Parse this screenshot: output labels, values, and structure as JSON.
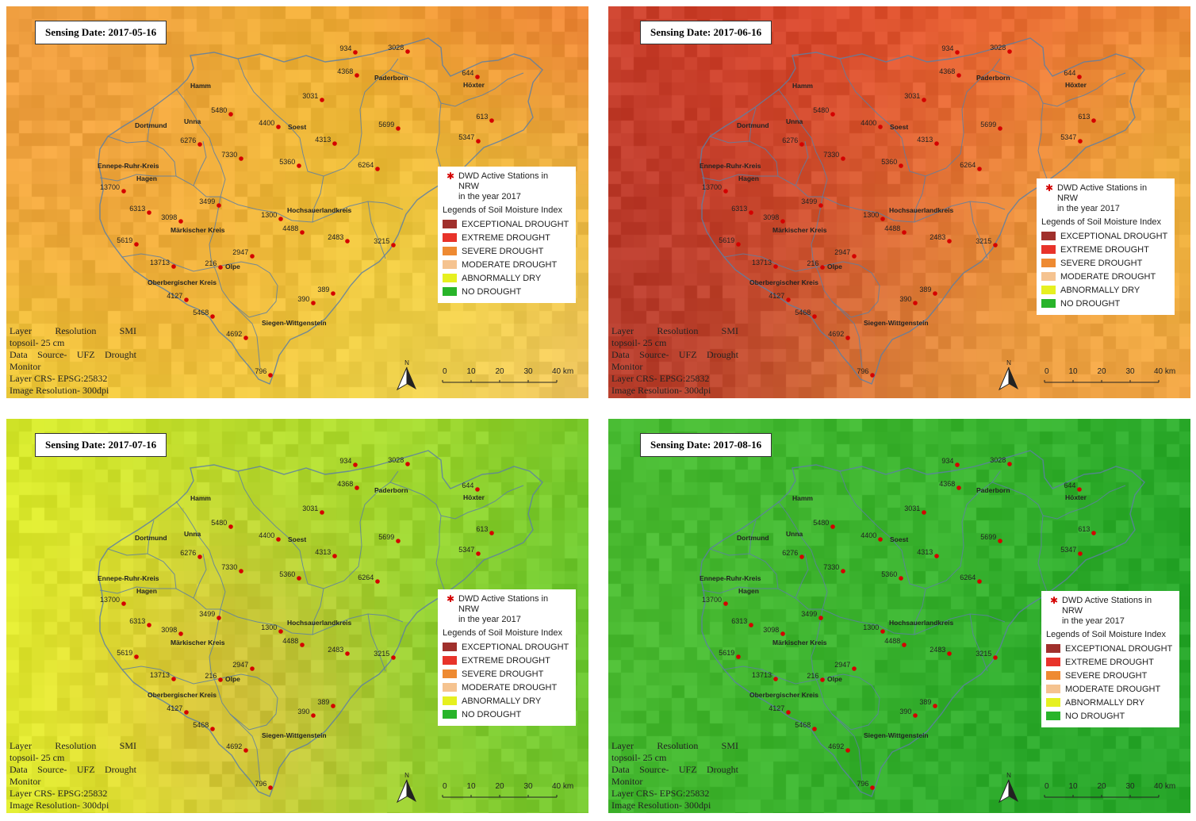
{
  "panels": [
    {
      "id": "p1",
      "sensing_date": "Sensing Date: 2017-05-16",
      "scheme": "may"
    },
    {
      "id": "p2",
      "sensing_date": "Sensing Date: 2017-06-16",
      "scheme": "jun"
    },
    {
      "id": "p3",
      "sensing_date": "Sensing Date: 2017-07-16",
      "scheme": "jul"
    },
    {
      "id": "p4",
      "sensing_date": "Sensing Date: 2017-08-16",
      "scheme": "aug"
    }
  ],
  "legend": {
    "stations_line1": "DWD Active Stations in NRW",
    "stations_line2": "in the year 2017",
    "subtitle": "Legends of Soil Moisture Index",
    "classes": [
      {
        "label": "EXCEPTIONAL DROUGHT",
        "color": "#a0302c"
      },
      {
        "label": "EXTREME DROUGHT",
        "color": "#e8332a"
      },
      {
        "label": "SEVERE DROUGHT",
        "color": "#ee8a32"
      },
      {
        "label": "MODERATE DROUGHT",
        "color": "#f5c390"
      },
      {
        "label": "ABNORMALLY DRY",
        "color": "#e6f020"
      },
      {
        "label": "NO DROUGHT",
        "color": "#28b42a"
      }
    ]
  },
  "metadata": {
    "line1_words": [
      "Layer",
      "Resolution",
      "SMI"
    ],
    "line2": "topsoil- 25 cm",
    "line3_words": [
      "Data",
      "Source-",
      "UFZ",
      "Drought"
    ],
    "line4": "Monitor",
    "line5": "Layer CRS- EPSG:25832",
    "line6": "Image Resolution- 300dpi"
  },
  "scale_bar": {
    "ticks": [
      "0",
      "10",
      "20",
      "30",
      "40 km"
    ]
  },
  "north_label": "N",
  "regions": [
    "Hamm",
    "Paderborn",
    "Höxter",
    "Dortmund",
    "Unna",
    "Soest",
    "Ennepe-Ruhr-Kreis",
    "Hagen",
    "Hochsauerlandkreis",
    "Märkischer Kreis",
    "Olpe",
    "Oberbergischer Kreis",
    "Siegen-Wittgenstein"
  ],
  "stations": [
    "934",
    "3028",
    "4368",
    "644",
    "3031",
    "5480",
    "4400",
    "5699",
    "613",
    "6276",
    "5347",
    "4313",
    "7330",
    "5360",
    "6264",
    "13700",
    "3499",
    "6313",
    "3098",
    "1300",
    "4488",
    "2483",
    "3215",
    "5619",
    "2947",
    "13713",
    "216",
    "389",
    "4127",
    "390",
    "5468",
    "4692",
    "796"
  ],
  "colors": {
    "station_marker": "#d40000",
    "boundary": "#5d7fa3",
    "frame": "#333333"
  }
}
